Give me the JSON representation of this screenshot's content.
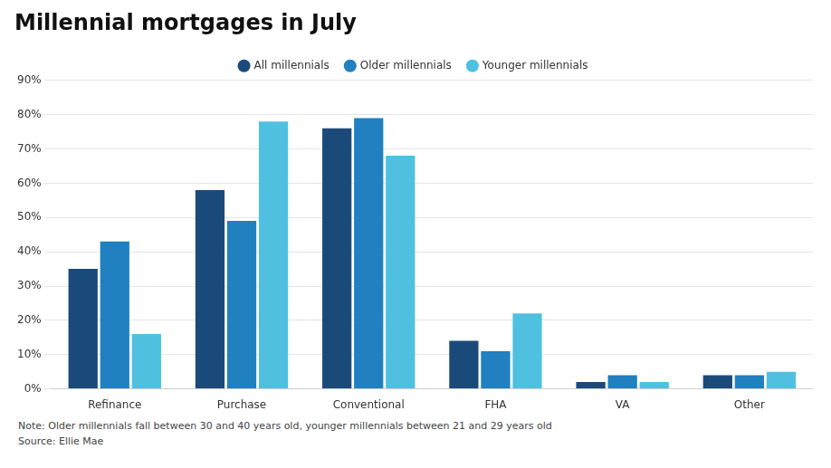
{
  "chart_data": {
    "type": "bar",
    "title": "Millennial mortgages in July",
    "categories": [
      "Refinance",
      "Purchase",
      "Conventional",
      "FHA",
      "VA",
      "Other"
    ],
    "series": [
      {
        "name": "All millennials",
        "color": "#1a4a7a",
        "values": [
          35,
          58,
          76,
          14,
          2,
          4
        ]
      },
      {
        "name": "Older millennials",
        "color": "#2080c0",
        "values": [
          43,
          49,
          79,
          11,
          4,
          4
        ]
      },
      {
        "name": "Younger millennials",
        "color": "#50c0e0",
        "values": [
          16,
          78,
          68,
          22,
          2,
          5
        ]
      }
    ],
    "ylim": [
      0,
      90
    ],
    "yticks": [
      {
        "value": 0,
        "label": "0%"
      },
      {
        "value": 10,
        "label": "10%"
      },
      {
        "value": 20,
        "label": "20%"
      },
      {
        "value": 30,
        "label": "30%"
      },
      {
        "value": 40,
        "label": "40%"
      },
      {
        "value": 50,
        "label": "50%"
      },
      {
        "value": 60,
        "label": "60%"
      },
      {
        "value": 70,
        "label": "70%"
      },
      {
        "value": 80,
        "label": "80%"
      },
      {
        "value": 90,
        "label": "90%"
      }
    ],
    "grid": true,
    "legend": "top",
    "annotations": [
      "Note: Older millennials fall between 30 and 40 years old, younger millennials between 21 and 29 years old",
      "Source: Ellie Mae"
    ]
  }
}
